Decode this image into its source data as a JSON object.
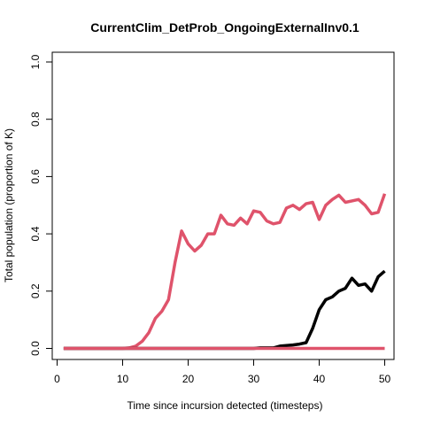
{
  "chart_data": {
    "type": "line",
    "title": "CurrentClim_DetProb_OngoingExternalInv0.1",
    "xlabel": "Time since incursion detected (timesteps)",
    "ylabel": "Total population (proportion of K)",
    "xlim": [
      1,
      50
    ],
    "ylim": [
      0,
      1
    ],
    "x_ticks": [
      0,
      10,
      20,
      30,
      40,
      50
    ],
    "y_ticks": [
      0.0,
      0.2,
      0.4,
      0.6,
      0.8,
      1.0
    ],
    "x_tick_labels": [
      "0",
      "10",
      "20",
      "30",
      "40",
      "50"
    ],
    "y_tick_labels": [
      "0.0",
      "0.2",
      "0.4",
      "0.6",
      "0.8",
      "1.0"
    ],
    "grid": false,
    "series": [
      {
        "color": "#DF536B",
        "x": [
          1,
          2,
          3,
          4,
          5,
          6,
          7,
          8,
          9,
          10,
          11,
          12,
          13,
          14,
          15,
          16,
          17,
          18,
          19,
          20,
          21,
          22,
          23,
          24,
          25,
          26,
          27,
          28,
          29,
          30,
          31,
          32,
          33,
          34,
          35,
          36,
          37,
          38,
          39,
          40,
          41,
          42,
          43,
          44,
          45,
          46,
          47,
          48,
          49,
          50
        ],
        "values": [
          0,
          0,
          0,
          0,
          0,
          0,
          0,
          0,
          0,
          0,
          0.002,
          0.008,
          0.025,
          0.055,
          0.105,
          0.13,
          0.17,
          0.3,
          0.41,
          0.365,
          0.34,
          0.36,
          0.4,
          0.4,
          0.465,
          0.435,
          0.43,
          0.455,
          0.435,
          0.48,
          0.475,
          0.445,
          0.435,
          0.44,
          0.49,
          0.5,
          0.485,
          0.505,
          0.51,
          0.45,
          0.5,
          0.52,
          0.535,
          0.51,
          0.515,
          0.52,
          0.5,
          0.47,
          0.475,
          0.54
        ]
      },
      {
        "color": "#000000",
        "x": [
          1,
          2,
          3,
          4,
          5,
          6,
          7,
          8,
          9,
          10,
          11,
          12,
          13,
          14,
          15,
          16,
          17,
          18,
          19,
          20,
          21,
          22,
          23,
          24,
          25,
          26,
          27,
          28,
          29,
          30,
          31,
          32,
          33,
          34,
          35,
          36,
          37,
          38,
          39,
          40,
          41,
          42,
          43,
          44,
          45,
          46,
          47,
          48,
          49,
          50
        ],
        "values": [
          0,
          0,
          0,
          0,
          0,
          0,
          0,
          0,
          0,
          0,
          0,
          0,
          0,
          0,
          0,
          0,
          0,
          0,
          0,
          0,
          0,
          0,
          0,
          0,
          0,
          0,
          0,
          0,
          0,
          0,
          0.002,
          0.002,
          0.002,
          0.008,
          0.01,
          0.012,
          0.015,
          0.02,
          0.07,
          0.135,
          0.17,
          0.18,
          0.2,
          0.21,
          0.245,
          0.22,
          0.225,
          0.2,
          0.25,
          0.27
        ]
      },
      {
        "color": "#DF536B",
        "x": [
          1,
          50
        ],
        "values": [
          0,
          0
        ]
      }
    ]
  }
}
